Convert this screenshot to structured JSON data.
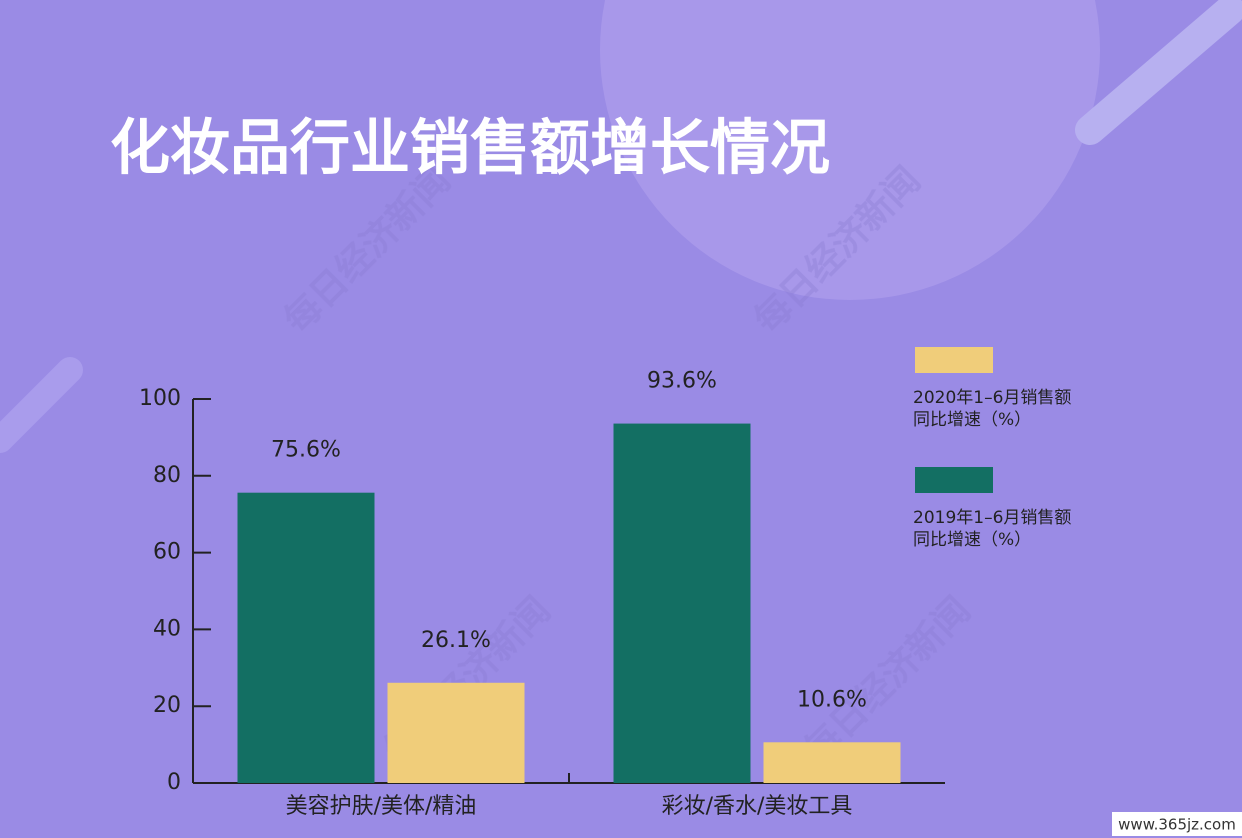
{
  "chart_data": {
    "type": "bar",
    "title": "化妆品行业销售额增长情况",
    "categories": [
      "美容护肤/美体/精油",
      "彩妆/香水/美妆工具"
    ],
    "series": [
      {
        "name": "2019年1–6月销售额同比增速（%）",
        "color": "#136f63",
        "values": [
          75.6,
          93.6
        ],
        "value_labels": [
          "75.6%",
          "93.6%"
        ]
      },
      {
        "name": "2020年1–6月销售额同比增速（%）",
        "color": "#f0cd7a",
        "values": [
          26.1,
          10.6
        ],
        "value_labels": [
          "26.1%",
          "10.6%"
        ]
      }
    ],
    "ylim": [
      0,
      100
    ],
    "yticks": [
      0,
      20,
      40,
      60,
      80,
      100
    ],
    "legend": "right"
  },
  "watermark": "每日经济新闻",
  "source": "www.365jz.com"
}
